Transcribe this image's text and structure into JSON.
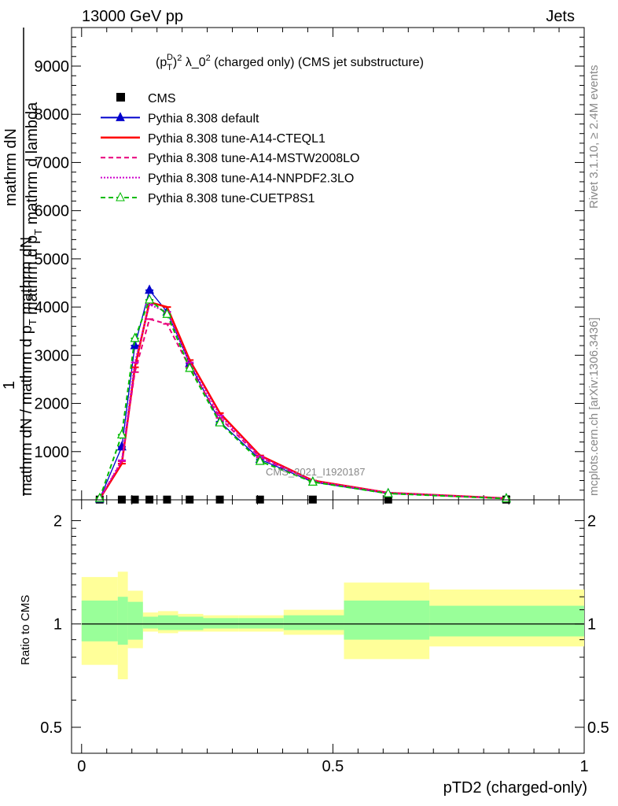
{
  "header": {
    "left": "13000 GeV pp",
    "right": "Jets"
  },
  "plot_title": {
    "prefix": "(p",
    "t_sup": "D",
    "t_sub": "T",
    "tail": ")",
    "exp1": "2",
    "lam": " λ_0",
    "exp2": "2",
    "rest": " (charged only) (CMS jet substructure)"
  },
  "side_labels": {
    "rivet": "Rivet 3.1.10, ≥ 2.4M events",
    "mcplots": "mcplots.cern.ch [arXiv:1306.3436]"
  },
  "watermark": "CMS_2021_I1920187",
  "ylabel_main": {
    "one": "1",
    "num_a": "mathrm dN",
    "num_b": "mathrm d p",
    "num_b_sub": "T",
    "num_c": " mathrm d lambda",
    "den_a": "mathrm dN / mathrm d p",
    "den_a_sub": "T",
    "den_b": " mathrm dN"
  },
  "ylabel_ratio": "Ratio to CMS",
  "xlabel": "pTD2 (charged-only)",
  "colors": {
    "cms": "#000000",
    "default": "#0000cc",
    "cteql1": "#ff0000",
    "mstw": "#e8007a",
    "nnpdf": "#cc00cc",
    "cuetp8s1": "#00bb00",
    "band_inner": "#99ff99",
    "band_outer": "#ffff99"
  },
  "chart_data": [
    {
      "type": "line",
      "title": "",
      "ylim": [
        0,
        9800
      ],
      "xlim": [
        -0.02,
        1.0
      ],
      "y_ticks": [
        "1000",
        "2000",
        "3000",
        "4000",
        "5000",
        "6000",
        "7000",
        "8000",
        "9000"
      ],
      "y_tick_values": [
        1000,
        2000,
        3000,
        4000,
        5000,
        6000,
        7000,
        8000,
        9000
      ],
      "x": [
        0.036,
        0.08,
        0.106,
        0.135,
        0.17,
        0.215,
        0.275,
        0.355,
        0.46,
        0.61,
        0.845
      ],
      "bin_edges": [
        0.0,
        0.072,
        0.092,
        0.122,
        0.152,
        0.192,
        0.242,
        0.312,
        0.402,
        0.522,
        0.692,
        1.0
      ],
      "series": [
        {
          "name": "CMS",
          "key": "cms",
          "style": "square",
          "values": [
            5,
            5,
            5,
            5,
            5,
            5,
            5,
            5,
            5,
            5,
            5
          ]
        },
        {
          "name": "Pythia 8.308 default",
          "key": "default",
          "style": "solid-tri",
          "values": [
            20,
            1100,
            3200,
            4350,
            3900,
            2830,
            1620,
            840,
            370,
            130,
            25
          ]
        },
        {
          "name": "Pythia 8.308 tune-A14-CTEQL1",
          "key": "cteql1",
          "style": "solid",
          "values": [
            20,
            750,
            2750,
            4100,
            4000,
            2900,
            1800,
            920,
            400,
            145,
            30
          ]
        },
        {
          "name": "Pythia 8.308 tune-A14-MSTW2008LO",
          "key": "mstw",
          "style": "dashed",
          "values": [
            20,
            800,
            2650,
            3750,
            3650,
            2750,
            1700,
            880,
            380,
            140,
            28
          ]
        },
        {
          "name": "Pythia 8.308 tune-A14-NNPDF2.3LO",
          "key": "nnpdf",
          "style": "dotted",
          "values": [
            20,
            820,
            2850,
            4050,
            3900,
            2850,
            1750,
            900,
            390,
            145,
            30
          ]
        },
        {
          "name": "Pythia 8.308 tune-CUETP8S1",
          "key": "cuetp8s1",
          "style": "dashed-opentri",
          "values": [
            30,
            1350,
            3350,
            4150,
            3850,
            2730,
            1600,
            800,
            370,
            130,
            25
          ]
        }
      ]
    },
    {
      "type": "area",
      "title": "",
      "ylabel": "Ratio to CMS",
      "xlabel": "pTD2 (charged-only)",
      "xlim": [
        -0.02,
        1.0
      ],
      "ylim": [
        0.42,
        2.3
      ],
      "log_y": true,
      "y_ticks": [
        "0.5",
        "1",
        "2"
      ],
      "y_tick_values": [
        0.5,
        1,
        2
      ],
      "x_ticks": [
        "0",
        "0.5",
        "1"
      ],
      "x_tick_values": [
        0,
        0.5,
        1
      ],
      "reference": 1.0,
      "bin_edges": [
        0.0,
        0.072,
        0.092,
        0.122,
        0.152,
        0.192,
        0.242,
        0.312,
        0.402,
        0.522,
        0.692,
        1.0
      ],
      "inner_low": [
        0.89,
        0.87,
        0.9,
        0.97,
        0.96,
        0.96,
        0.97,
        0.97,
        0.96,
        0.9,
        0.92
      ],
      "inner_high": [
        1.17,
        1.2,
        1.16,
        1.05,
        1.06,
        1.05,
        1.04,
        1.04,
        1.06,
        1.17,
        1.13
      ],
      "outer_low": [
        0.76,
        0.69,
        0.85,
        0.95,
        0.94,
        0.95,
        0.95,
        0.95,
        0.93,
        0.79,
        0.86
      ],
      "outer_high": [
        1.37,
        1.42,
        1.25,
        1.08,
        1.09,
        1.07,
        1.06,
        1.06,
        1.1,
        1.32,
        1.26
      ]
    }
  ]
}
